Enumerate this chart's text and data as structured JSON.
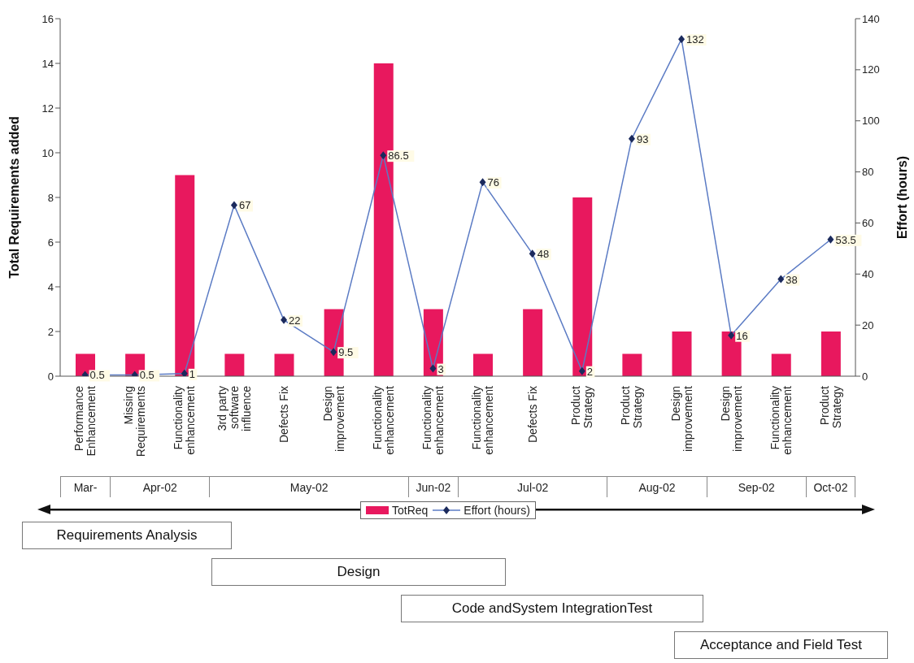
{
  "chart_data": {
    "type": "bar",
    "ylabel": "Total Requirements added",
    "y2label": "Effort (hours)",
    "categories": [
      "Performance Enhancement",
      "Missing Requirements",
      "Functionality enhancement",
      "3rd party software influence",
      "Defects Fix",
      "Design improvement",
      "Functionality enhancement",
      "Functionality enhancement",
      "Functionality enhancement",
      "Defects Fix",
      "Product Strategy",
      "Product Strategy",
      "Design improvement",
      "Design improvement",
      "Functionality enhancement",
      "Product Strategy"
    ],
    "series": [
      {
        "name": "TotReq",
        "color": "#e8185e",
        "values": [
          1,
          1,
          9,
          1,
          1,
          3,
          14,
          3,
          1,
          3,
          8,
          1,
          2,
          2,
          1,
          2
        ]
      },
      {
        "name": "Effort (hours)",
        "type": "line",
        "axis": "y2",
        "color": "#5b7bc4",
        "values": [
          0.5,
          0.5,
          1,
          67,
          22,
          9.5,
          86.5,
          3,
          76,
          48,
          2,
          93,
          132,
          16,
          38,
          53.5
        ],
        "value_labels": [
          "0.5",
          "0.5",
          "1",
          "67",
          "22",
          "9.5",
          "86.5",
          "3",
          "76",
          "48",
          "2",
          "93",
          "132",
          "16",
          "38",
          "53.5"
        ]
      }
    ],
    "ylim": [
      0,
      16
    ],
    "yticks": [
      0,
      2,
      4,
      6,
      8,
      10,
      12,
      14,
      16
    ],
    "y2lim": [
      0,
      140
    ],
    "y2ticks": [
      0,
      20,
      40,
      60,
      80,
      100,
      120,
      140
    ],
    "marker": "diamond",
    "legend": "bottom",
    "annotations": [
      "Mar-",
      "Apr-02",
      "May-02",
      "Jun-02",
      "Jul-02",
      "Aug-02",
      "Sep-02",
      "Oct-02",
      "Requirements Analysis",
      "Design",
      "Code andSystem IntegrationTest",
      "Acceptance and Field Test"
    ]
  }
}
